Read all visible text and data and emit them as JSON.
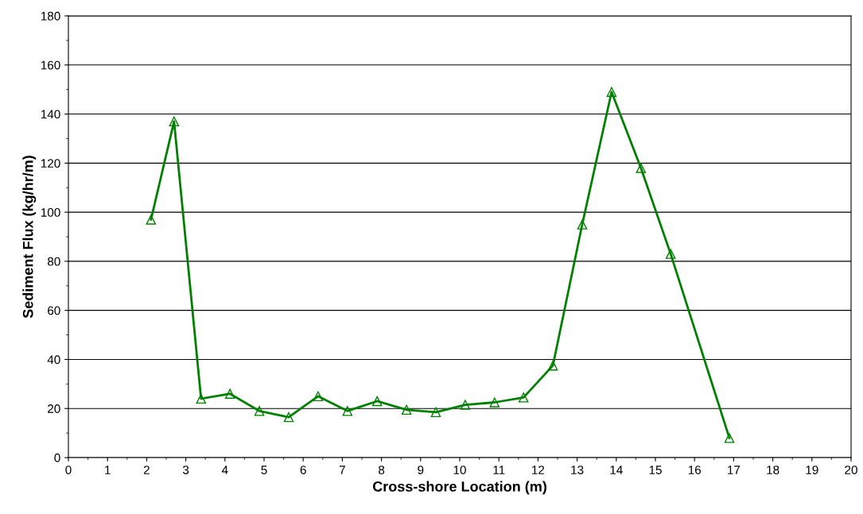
{
  "chart_data": {
    "type": "line",
    "xlabel": "Cross-shore Location (m)",
    "ylabel": "Sediment Flux (kg/hr/m)",
    "x": [
      2.11,
      2.7,
      3.39,
      4.13,
      4.88,
      5.63,
      6.38,
      7.13,
      7.89,
      8.64,
      9.39,
      10.14,
      10.89,
      11.63,
      12.38,
      13.13,
      13.88,
      14.63,
      15.39,
      16.89
    ],
    "series": [
      {
        "color": "#008000",
        "values": [
          97,
          137,
          24,
          26,
          19,
          16.5,
          25,
          19,
          23,
          19.5,
          18.5,
          21.5,
          22.5,
          24.5,
          37.5,
          95,
          149,
          118,
          83,
          8
        ]
      }
    ],
    "xlim": [
      0,
      20
    ],
    "xticks": [
      0,
      1,
      2,
      3,
      4,
      5,
      6,
      7,
      8,
      9,
      10,
      11,
      12,
      13,
      14,
      15,
      16,
      17,
      18,
      19,
      20
    ],
    "ylim": [
      0,
      180
    ],
    "yticks": [
      0,
      20,
      40,
      60,
      80,
      100,
      120,
      140,
      160,
      180
    ],
    "grid": "y",
    "marker": "triangle",
    "line_style": "solid"
  }
}
